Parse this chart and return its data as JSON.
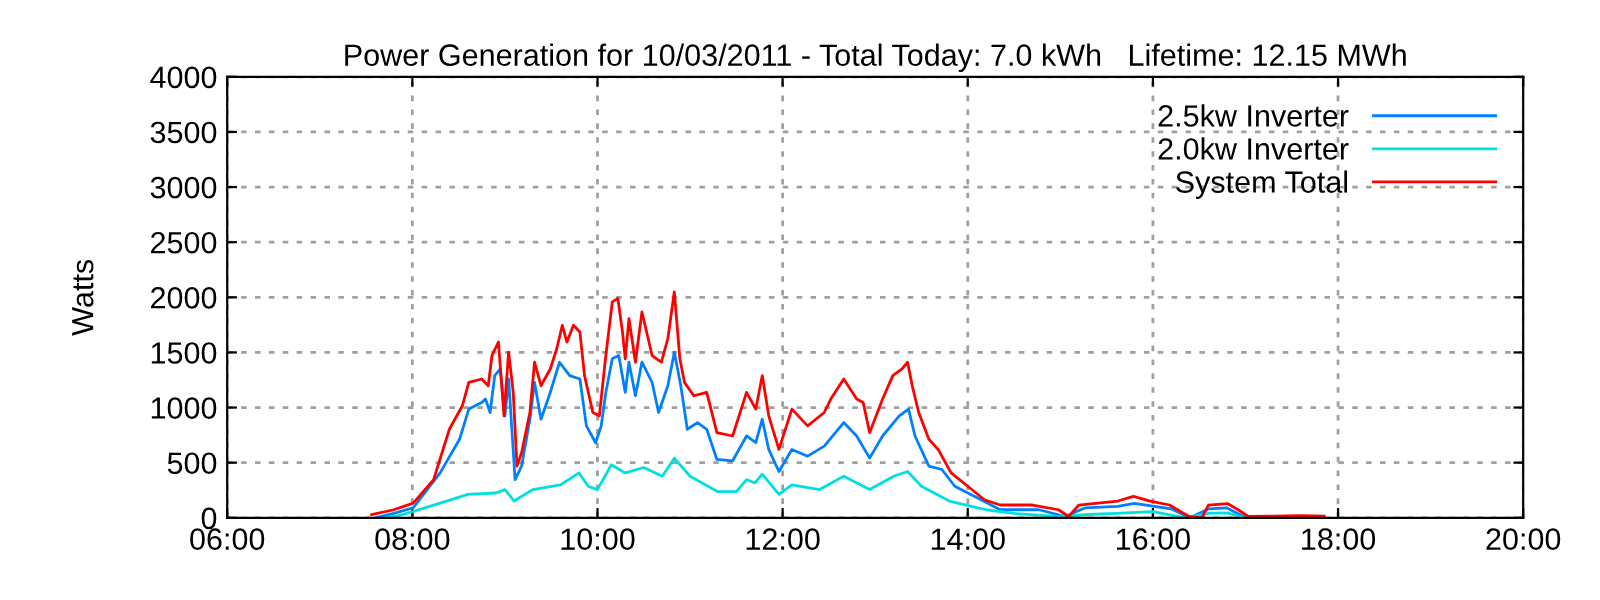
{
  "chart_data": {
    "type": "line",
    "title": "Power Generation for 10/03/2011 - Total Today: 7.0 kWh   Lifetime: 12.15 MWh",
    "ylabel": "Watts",
    "xlim": [
      6,
      20
    ],
    "xticks": [
      {
        "value": 6,
        "label": "06:00"
      },
      {
        "value": 8,
        "label": "08:00"
      },
      {
        "value": 10,
        "label": "10:00"
      },
      {
        "value": 12,
        "label": "12:00"
      },
      {
        "value": 14,
        "label": "14:00"
      },
      {
        "value": 16,
        "label": "16:00"
      },
      {
        "value": 18,
        "label": "18:00"
      },
      {
        "value": 20,
        "label": "20:00"
      }
    ],
    "ylim": [
      0,
      4000
    ],
    "yticks": [
      0,
      500,
      1000,
      1500,
      2000,
      2500,
      3000,
      3500,
      4000
    ],
    "grid": true,
    "legend": "top right",
    "marker": "none",
    "line_style": "solid",
    "series": [
      {
        "name": "2.5kw Inverter",
        "color": "#0080ff",
        "x": [
          7.6,
          7.8,
          8.01,
          8.3,
          8.51,
          8.61,
          8.75,
          8.79,
          8.84,
          8.89,
          8.95,
          9.0,
          9.04,
          9.11,
          9.18,
          9.27,
          9.32,
          9.39,
          9.49,
          9.59,
          9.7,
          9.81,
          9.88,
          9.98,
          10.04,
          10.09,
          10.16,
          10.23,
          10.3,
          10.34,
          10.41,
          10.48,
          10.59,
          10.66,
          10.76,
          10.83,
          10.9,
          10.97,
          11.08,
          11.18,
          11.29,
          11.46,
          11.61,
          11.71,
          11.78,
          11.85,
          11.96,
          12.1,
          12.27,
          12.45,
          12.66,
          12.8,
          12.94,
          13.08,
          13.26,
          13.36,
          13.43,
          13.58,
          13.72,
          13.86,
          14.07,
          14.35,
          14.77,
          15.05,
          15.27,
          15.62,
          15.8,
          16.2,
          16.4,
          16.6,
          16.8,
          17.0,
          17.8
        ],
        "values": [
          0,
          40,
          91,
          407,
          712,
          986,
          1046,
          1077,
          955,
          1290,
          1350,
          925,
          1259,
          347,
          469,
          894,
          1228,
          894,
          1137,
          1411,
          1290,
          1259,
          834,
          681,
          834,
          1137,
          1442,
          1472,
          1137,
          1411,
          1107,
          1411,
          1228,
          955,
          1198,
          1502,
          1198,
          803,
          864,
          803,
          529,
          517,
          742,
          681,
          894,
          620,
          420,
          620,
          559,
          650,
          864,
          742,
          541,
          742,
          925,
          986,
          742,
          469,
          438,
          286,
          195,
          73,
          73,
          12,
          91,
          104,
          130,
          80,
          0,
          80,
          90,
          0,
          0
        ]
      },
      {
        "name": "2.0kw Inverter",
        "color": "#00e0e0",
        "x": [
          7.7,
          7.85,
          8.0,
          8.3,
          8.6,
          8.9,
          9.0,
          9.1,
          9.3,
          9.6,
          9.8,
          9.9,
          10.0,
          10.15,
          10.3,
          10.5,
          10.7,
          10.83,
          11.0,
          11.3,
          11.5,
          11.61,
          11.7,
          11.78,
          11.96,
          12.1,
          12.4,
          12.66,
          12.94,
          13.2,
          13.35,
          13.5,
          13.8,
          14.2,
          14.5,
          15.0,
          15.3,
          15.6,
          16.0,
          16.35,
          16.6,
          16.8,
          17.0,
          17.8
        ],
        "values": [
          0,
          20,
          55,
          133,
          213,
          225,
          256,
          152,
          256,
          298,
          407,
          286,
          256,
          481,
          407,
          456,
          377,
          541,
          377,
          237,
          237,
          347,
          316,
          395,
          213,
          298,
          256,
          377,
          256,
          377,
          420,
          286,
          152,
          73,
          40,
          10,
          30,
          40,
          55,
          0,
          40,
          45,
          0,
          0
        ]
      },
      {
        "name": "System Total",
        "color": "#ff0000",
        "x": [
          7.56,
          7.8,
          8.01,
          8.23,
          8.4,
          8.54,
          8.61,
          8.75,
          8.82,
          8.86,
          8.93,
          8.99,
          9.04,
          9.09,
          9.13,
          9.18,
          9.27,
          9.32,
          9.39,
          9.49,
          9.56,
          9.62,
          9.67,
          9.74,
          9.81,
          9.86,
          9.95,
          10.02,
          10.09,
          10.16,
          10.22,
          10.27,
          10.3,
          10.34,
          10.41,
          10.48,
          10.59,
          10.69,
          10.76,
          10.83,
          10.89,
          10.94,
          11.04,
          11.18,
          11.29,
          11.46,
          11.61,
          11.71,
          11.78,
          11.85,
          11.96,
          12.1,
          12.27,
          12.45,
          12.52,
          12.66,
          12.8,
          12.87,
          12.94,
          13.08,
          13.19,
          13.29,
          13.35,
          13.4,
          13.47,
          13.58,
          13.68,
          13.82,
          14.0,
          14.18,
          14.35,
          14.7,
          14.98,
          15.09,
          15.2,
          15.41,
          15.62,
          15.79,
          15.97,
          16.18,
          16.39,
          16.53,
          16.6,
          16.81,
          16.92,
          17.03,
          17.3,
          17.6,
          17.85
        ],
        "values": [
          30,
          73,
          133,
          347,
          803,
          1016,
          1228,
          1259,
          1198,
          1472,
          1594,
          925,
          1502,
          1137,
          469,
          590,
          955,
          1411,
          1198,
          1350,
          1533,
          1746,
          1594,
          1746,
          1685,
          1290,
          955,
          925,
          1472,
          1959,
          1990,
          1685,
          1442,
          1807,
          1411,
          1867,
          1472,
          1411,
          1624,
          2050,
          1442,
          1228,
          1107,
          1137,
          772,
          742,
          1137,
          986,
          1290,
          925,
          620,
          986,
          834,
          955,
          1077,
          1259,
          1077,
          1046,
          772,
          1077,
          1290,
          1350,
          1411,
          1198,
          955,
          712,
          620,
          407,
          286,
          164,
          116,
          116,
          73,
          12,
          116,
          133,
          152,
          195,
          152,
          116,
          12,
          0,
          116,
          128,
          73,
          12,
          15,
          20,
          15
        ]
      }
    ]
  }
}
